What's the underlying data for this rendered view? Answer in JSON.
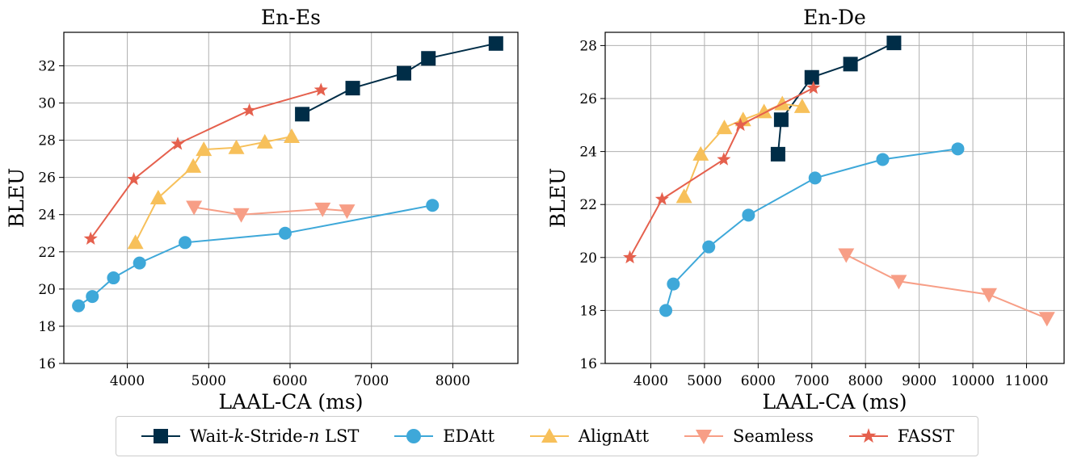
{
  "chart_data": [
    {
      "type": "line",
      "title": "En-Es",
      "xlabel": "LAAL-CA (ms)",
      "ylabel": "BLEU",
      "xlim": [
        3220,
        8800
      ],
      "ylim": [
        16,
        33.8
      ],
      "xticks": [
        4000,
        5000,
        6000,
        7000,
        8000
      ],
      "yticks": [
        16,
        18,
        20,
        22,
        24,
        26,
        28,
        30,
        32
      ],
      "grid": true,
      "series": [
        {
          "name": "Wait-k-Stride-n LST",
          "x": [
            6150,
            6770,
            7400,
            7700,
            8530
          ],
          "y": [
            29.4,
            30.8,
            31.6,
            32.4,
            33.2
          ]
        },
        {
          "name": "EDAtt",
          "x": [
            3400,
            3570,
            3830,
            4150,
            4710,
            5940,
            7750
          ],
          "y": [
            19.1,
            19.6,
            20.6,
            21.4,
            22.5,
            23.0,
            24.5
          ]
        },
        {
          "name": "AlignAtt",
          "x": [
            4100,
            4380,
            4810,
            4940,
            5340,
            5690,
            6020
          ],
          "y": [
            22.5,
            24.9,
            26.6,
            27.5,
            27.6,
            27.9,
            28.2
          ]
        },
        {
          "name": "Seamless",
          "x": [
            4820,
            5400,
            6400,
            6700
          ],
          "y": [
            24.4,
            24.0,
            24.3,
            24.2
          ]
        },
        {
          "name": "FASST",
          "x": [
            3550,
            4080,
            4620,
            5500,
            6380
          ],
          "y": [
            22.7,
            25.9,
            27.8,
            29.6,
            30.7
          ]
        }
      ]
    },
    {
      "type": "line",
      "title": "En-De",
      "xlabel": "LAAL-CA (ms)",
      "ylabel": "BLEU",
      "xlim": [
        3150,
        11700
      ],
      "ylim": [
        16,
        28.5
      ],
      "xticks": [
        4000,
        5000,
        6000,
        7000,
        8000,
        9000,
        10000,
        11000
      ],
      "xticklabels": [
        "4000",
        "5000",
        "6000",
        "7000",
        "8000",
        "9000",
        "10000",
        "11000"
      ],
      "yticks": [
        16,
        18,
        20,
        22,
        24,
        26,
        28
      ],
      "grid": true,
      "series": [
        {
          "name": "Wait-k-Stride-n LST",
          "x": [
            6370,
            6430,
            7000,
            7720,
            8530
          ],
          "y": [
            23.9,
            25.2,
            26.8,
            27.3,
            28.1
          ]
        },
        {
          "name": "EDAtt",
          "x": [
            4280,
            4420,
            5080,
            5820,
            7060,
            8320,
            9720
          ],
          "y": [
            18.0,
            19.0,
            20.4,
            21.6,
            23.0,
            23.7,
            24.1
          ]
        },
        {
          "name": "AlignAtt",
          "x": [
            4620,
            4930,
            5370,
            5720,
            6110,
            6450,
            6820
          ],
          "y": [
            22.3,
            23.9,
            24.9,
            25.2,
            25.5,
            25.8,
            25.7
          ]
        },
        {
          "name": "Seamless",
          "x": [
            7640,
            8620,
            10300,
            11380
          ],
          "y": [
            20.1,
            19.1,
            18.6,
            17.7
          ]
        },
        {
          "name": "FASST",
          "x": [
            3610,
            4210,
            5360,
            5670,
            7030
          ],
          "y": [
            20.0,
            22.2,
            23.7,
            25.0,
            26.4
          ]
        }
      ]
    }
  ],
  "legend": {
    "items": [
      {
        "prefix": "Wait-",
        "italic1": "k",
        "middle": "-Stride-",
        "italic2": "n",
        "suffix": " LST",
        "marker": "square",
        "color": "#002d47"
      },
      {
        "label": "EDAtt",
        "marker": "circle",
        "color": "#3ea8d9"
      },
      {
        "label": "AlignAtt",
        "marker": "triangle-up",
        "color": "#f7c05a"
      },
      {
        "label": "Seamless",
        "marker": "triangle-down",
        "color": "#f79e86"
      },
      {
        "label": "FASST",
        "marker": "star",
        "color": "#e5604d"
      }
    ]
  },
  "styles": {
    "colors": {
      "Wait-k-Stride-n LST": "#002d47",
      "EDAtt": "#3ea8d9",
      "AlignAtt": "#f7c05a",
      "Seamless": "#f79e86",
      "FASST": "#e5604d"
    },
    "markers": {
      "Wait-k-Stride-n LST": "square",
      "EDAtt": "circle",
      "AlignAtt": "triangle-up",
      "Seamless": "triangle-down",
      "FASST": "star"
    }
  }
}
